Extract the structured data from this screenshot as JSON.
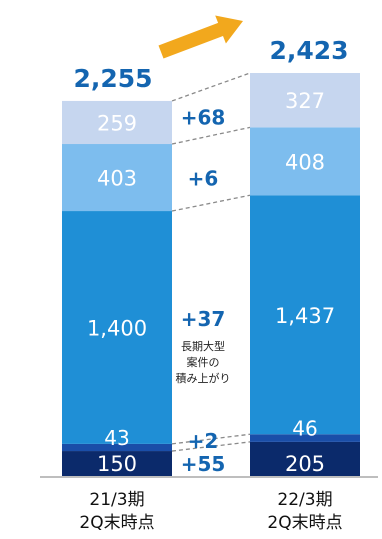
{
  "chart_data": {
    "type": "bar",
    "stacked": true,
    "categories": [
      "21/3期\n2Q末時点",
      "22/3期\n2Q末時点"
    ],
    "series": [
      {
        "values": [
          150,
          205
        ],
        "color": "#0b2a6b",
        "label_color": "#ffffff"
      },
      {
        "values": [
          43,
          46
        ],
        "color": "#1a4ea8",
        "label_color": "#ffffff"
      },
      {
        "values": [
          1400,
          1437
        ],
        "color": "#1f8fd6",
        "label_color": "#ffffff"
      },
      {
        "values": [
          403,
          408
        ],
        "color": "#7dbdee",
        "label_color": "#ffffff"
      },
      {
        "values": [
          259,
          327
        ],
        "color": "#c6d6ef",
        "label_color": "#ffffff"
      }
    ],
    "value_labels": [
      [
        "150",
        "43",
        "1,400",
        "403",
        "259"
      ],
      [
        "205",
        "46",
        "1,437",
        "408",
        "327"
      ]
    ],
    "totals": [
      2255,
      2423
    ],
    "total_labels": [
      "2,255",
      "2,423"
    ],
    "differences": [
      "+55",
      "+2",
      "+37",
      "+6",
      "+68"
    ],
    "annotation": "長期大型\n案件の\n積み上がり",
    "total_color": "#1465b0",
    "diff_color": "#1465b0",
    "arrow_color": "#f2a81d",
    "grid": false,
    "legend": "none"
  }
}
